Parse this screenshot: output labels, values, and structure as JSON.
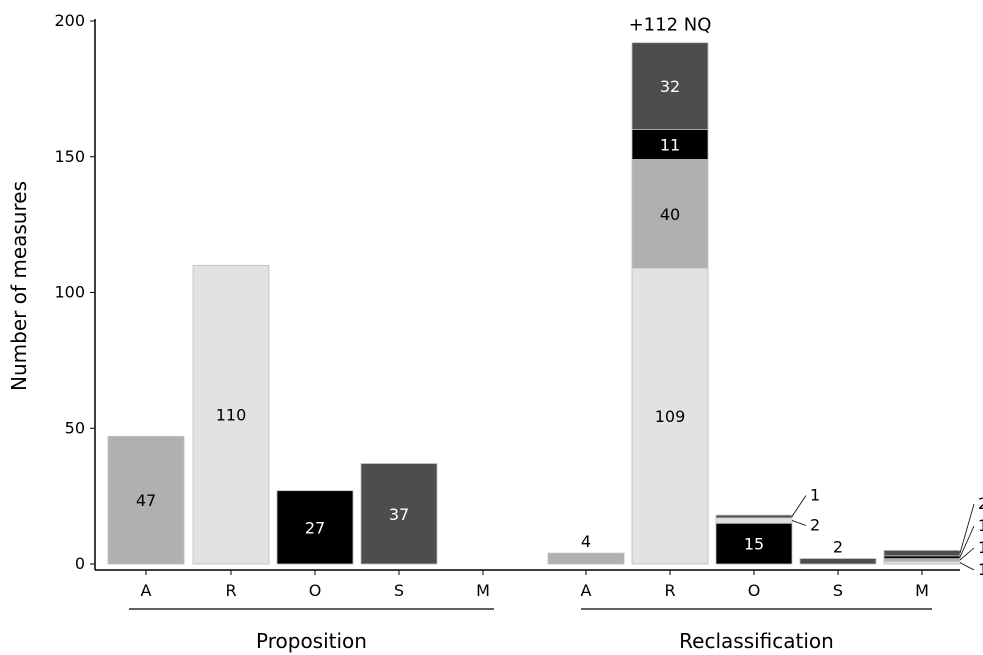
{
  "chart_data": {
    "type": "bar",
    "stacked": true,
    "ylabel": "Number of measures",
    "ylim": [
      0,
      200
    ],
    "yticks": [
      0,
      50,
      100,
      150,
      200
    ],
    "grid": false,
    "groups": [
      {
        "label": "Proposition",
        "bars": [
          {
            "category": "A",
            "segments": [
              {
                "value": 47,
                "color": "#b0b0b0",
                "label": "47"
              }
            ]
          },
          {
            "category": "R",
            "segments": [
              {
                "value": 110,
                "color": "#e2e2e2",
                "label": "110"
              }
            ]
          },
          {
            "category": "O",
            "segments": [
              {
                "value": 27,
                "color": "#000000",
                "label": "27"
              }
            ]
          },
          {
            "category": "S",
            "segments": [
              {
                "value": 37,
                "color": "#4d4d4d",
                "label": "37"
              }
            ]
          },
          {
            "category": "M",
            "segments": []
          }
        ]
      },
      {
        "label": "Reclassification",
        "bars": [
          {
            "category": "A",
            "segments": [
              {
                "value": 4,
                "color": "#b0b0b0",
                "label": "4"
              }
            ]
          },
          {
            "category": "R",
            "segments": [
              {
                "value": 109,
                "color": "#e2e2e2",
                "label": "109"
              },
              {
                "value": 40,
                "color": "#b0b0b0",
                "label": "40"
              },
              {
                "value": 11,
                "color": "#000000",
                "label": "11"
              },
              {
                "value": 32,
                "color": "#4d4d4d",
                "label": "32"
              }
            ],
            "annotation": "+112 NQ"
          },
          {
            "category": "O",
            "segments": [
              {
                "value": 15,
                "color": "#000000",
                "label": "15"
              },
              {
                "value": 2,
                "color": "#e2e2e2",
                "label": "2"
              },
              {
                "value": 1,
                "color": "#4d4d4d",
                "label": "1"
              }
            ]
          },
          {
            "category": "S",
            "segments": [
              {
                "value": 2,
                "color": "#4d4d4d",
                "label": "2"
              }
            ]
          },
          {
            "category": "M",
            "segments": [
              {
                "value": 1,
                "color": "#e2e2e2",
                "label": "1"
              },
              {
                "value": 1,
                "color": "#b0b0b0",
                "label": "1"
              },
              {
                "value": 1,
                "color": "#000000",
                "label": "1"
              },
              {
                "value": 2,
                "color": "#4d4d4d",
                "label": "2"
              }
            ]
          }
        ]
      }
    ]
  }
}
